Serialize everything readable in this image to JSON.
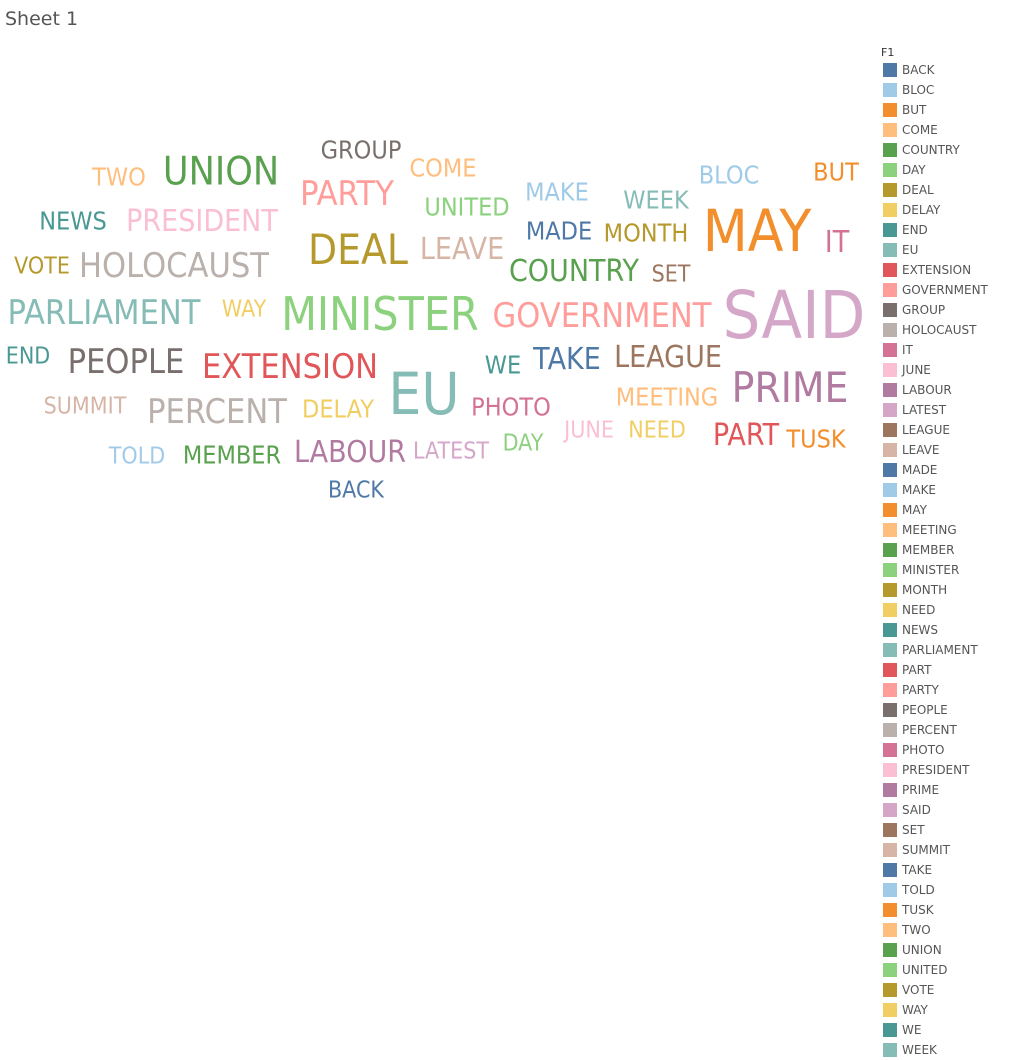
{
  "sheet": {
    "title": "Sheet 1"
  },
  "chart_data": {
    "type": "word-cloud",
    "legend_title": "F1",
    "legend_placement": "right",
    "legend": [
      {
        "label": "BACK",
        "color": "#4e79a7"
      },
      {
        "label": "BLOC",
        "color": "#a0cbe8"
      },
      {
        "label": "BUT",
        "color": "#f28e2b"
      },
      {
        "label": "COME",
        "color": "#ffbe7d"
      },
      {
        "label": "COUNTRY",
        "color": "#59a14f"
      },
      {
        "label": "DAY",
        "color": "#8cd17d"
      },
      {
        "label": "DEAL",
        "color": "#b6992d"
      },
      {
        "label": "DELAY",
        "color": "#f1ce63"
      },
      {
        "label": "END",
        "color": "#499894"
      },
      {
        "label": "EU",
        "color": "#86bcb6"
      },
      {
        "label": "EXTENSION",
        "color": "#e15759"
      },
      {
        "label": "GOVERNMENT",
        "color": "#ff9d9a"
      },
      {
        "label": "GROUP",
        "color": "#79706e"
      },
      {
        "label": "HOLOCAUST",
        "color": "#bab0ac"
      },
      {
        "label": "IT",
        "color": "#d37295"
      },
      {
        "label": "JUNE",
        "color": "#fabfd2"
      },
      {
        "label": "LABOUR",
        "color": "#b07aa1"
      },
      {
        "label": "LATEST",
        "color": "#d4a6c8"
      },
      {
        "label": "LEAGUE",
        "color": "#9d7660"
      },
      {
        "label": "LEAVE",
        "color": "#d7b5a6"
      },
      {
        "label": "MADE",
        "color": "#4e79a7"
      },
      {
        "label": "MAKE",
        "color": "#a0cbe8"
      },
      {
        "label": "MAY",
        "color": "#f28e2b"
      },
      {
        "label": "MEETING",
        "color": "#ffbe7d"
      },
      {
        "label": "MEMBER",
        "color": "#59a14f"
      },
      {
        "label": "MINISTER",
        "color": "#8cd17d"
      },
      {
        "label": "MONTH",
        "color": "#b6992d"
      },
      {
        "label": "NEED",
        "color": "#f1ce63"
      },
      {
        "label": "NEWS",
        "color": "#499894"
      },
      {
        "label": "PARLIAMENT",
        "color": "#86bcb6"
      },
      {
        "label": "PART",
        "color": "#e15759"
      },
      {
        "label": "PARTY",
        "color": "#ff9d9a"
      },
      {
        "label": "PEOPLE",
        "color": "#79706e"
      },
      {
        "label": "PERCENT",
        "color": "#bab0ac"
      },
      {
        "label": "PHOTO",
        "color": "#d37295"
      },
      {
        "label": "PRESIDENT",
        "color": "#fabfd2"
      },
      {
        "label": "PRIME",
        "color": "#b07aa1"
      },
      {
        "label": "SAID",
        "color": "#d4a6c8"
      },
      {
        "label": "SET",
        "color": "#9d7660"
      },
      {
        "label": "SUMMIT",
        "color": "#d7b5a6"
      },
      {
        "label": "TAKE",
        "color": "#4e79a7"
      },
      {
        "label": "TOLD",
        "color": "#a0cbe8"
      },
      {
        "label": "TUSK",
        "color": "#f28e2b"
      },
      {
        "label": "TWO",
        "color": "#ffbe7d"
      },
      {
        "label": "UNION",
        "color": "#59a14f"
      },
      {
        "label": "UNITED",
        "color": "#8cd17d"
      },
      {
        "label": "VOTE",
        "color": "#b6992d"
      },
      {
        "label": "WAY",
        "color": "#f1ce63"
      },
      {
        "label": "WE",
        "color": "#499894"
      },
      {
        "label": "WEEK",
        "color": "#86bcb6"
      }
    ],
    "words": [
      {
        "text": "SAID",
        "weight": 10
      },
      {
        "text": "MAY",
        "weight": 9
      },
      {
        "text": "EU",
        "weight": 9
      },
      {
        "text": "MINISTER",
        "weight": 8
      },
      {
        "text": "DEAL",
        "weight": 7
      },
      {
        "text": "PRIME",
        "weight": 7
      },
      {
        "text": "UNION",
        "weight": 6
      },
      {
        "text": "PEOPLE",
        "weight": 5
      },
      {
        "text": "HOLOCAUST",
        "weight": 5
      },
      {
        "text": "GOVERNMENT",
        "weight": 5
      },
      {
        "text": "PARTY",
        "weight": 5
      },
      {
        "text": "PARLIAMENT",
        "weight": 5
      },
      {
        "text": "PERCENT",
        "weight": 5
      },
      {
        "text": "EXTENSION",
        "weight": 5
      },
      {
        "text": "PRESIDENT",
        "weight": 4
      },
      {
        "text": "LEAVE",
        "weight": 4
      },
      {
        "text": "TAKE",
        "weight": 4
      },
      {
        "text": "COUNTRY",
        "weight": 4
      },
      {
        "text": "LABOUR",
        "weight": 4
      },
      {
        "text": "LEAGUE",
        "weight": 4
      },
      {
        "text": "PART",
        "weight": 4
      },
      {
        "text": "IT",
        "weight": 4
      },
      {
        "text": "MEMBER",
        "weight": 3
      },
      {
        "text": "MADE",
        "weight": 3
      },
      {
        "text": "UNITED",
        "weight": 3
      },
      {
        "text": "GROUP",
        "weight": 3
      },
      {
        "text": "MONTH",
        "weight": 3
      },
      {
        "text": "NEWS",
        "weight": 3
      },
      {
        "text": "COME",
        "weight": 3
      },
      {
        "text": "MAKE",
        "weight": 3
      },
      {
        "text": "BUT",
        "weight": 3
      },
      {
        "text": "TUSK",
        "weight": 3
      },
      {
        "text": "MEETING",
        "weight": 3
      },
      {
        "text": "PHOTO",
        "weight": 3
      },
      {
        "text": "DELAY",
        "weight": 3
      },
      {
        "text": "TWO",
        "weight": 3
      },
      {
        "text": "WE",
        "weight": 3
      },
      {
        "text": "WEEK",
        "weight": 3
      },
      {
        "text": "BLOC",
        "weight": 3
      },
      {
        "text": "SUMMIT",
        "weight": 2
      },
      {
        "text": "VOTE",
        "weight": 2
      },
      {
        "text": "BACK",
        "weight": 2
      },
      {
        "text": "NEED",
        "weight": 2
      },
      {
        "text": "TOLD",
        "weight": 2
      },
      {
        "text": "SET",
        "weight": 2
      },
      {
        "text": "LATEST",
        "weight": 2
      },
      {
        "text": "END",
        "weight": 2
      },
      {
        "text": "JUNE",
        "weight": 2
      },
      {
        "text": "WAY",
        "weight": 2
      },
      {
        "text": "DAY",
        "weight": 2
      }
    ]
  }
}
